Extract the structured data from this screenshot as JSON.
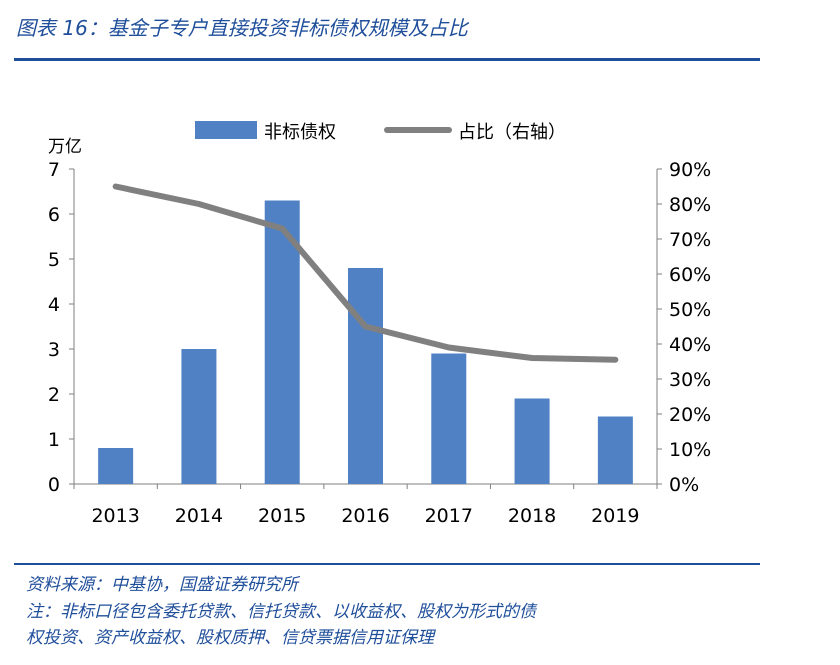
{
  "figure": {
    "title": "图表 16：基金子专户直接投资非标债权规模及占比",
    "source": "资料来源：中基协，国盛证券研究所",
    "note_line1": "注：非标口径包含委托贷款、信托贷款、以收益权、股权为形式的债",
    "note_line2": "权投资、资产收益权、股权质押、信贷票据信用证保理"
  },
  "chart_data": {
    "type": "bar",
    "categories": [
      "2013",
      "2014",
      "2015",
      "2016",
      "2017",
      "2018",
      "2019"
    ],
    "series": [
      {
        "name": "非标债权",
        "type": "bar",
        "axis": "left",
        "values": [
          0.8,
          3.0,
          6.3,
          4.8,
          2.9,
          1.9,
          1.5
        ],
        "color": "#4f81c4"
      },
      {
        "name": "占比（右轴）",
        "type": "line",
        "axis": "right",
        "values": [
          0.85,
          0.8,
          0.73,
          0.45,
          0.39,
          0.36,
          0.355
        ],
        "color": "#808080"
      }
    ],
    "left_axis": {
      "unit_label": "万亿",
      "min": 0,
      "max": 7,
      "step": 1
    },
    "right_axis": {
      "min": 0,
      "max": 0.9,
      "step": 0.1,
      "tick_labels": [
        "0%",
        "10%",
        "20%",
        "30%",
        "40%",
        "50%",
        "60%",
        "70%",
        "80%",
        "90%"
      ]
    },
    "legend_position": "top",
    "grid": false
  }
}
